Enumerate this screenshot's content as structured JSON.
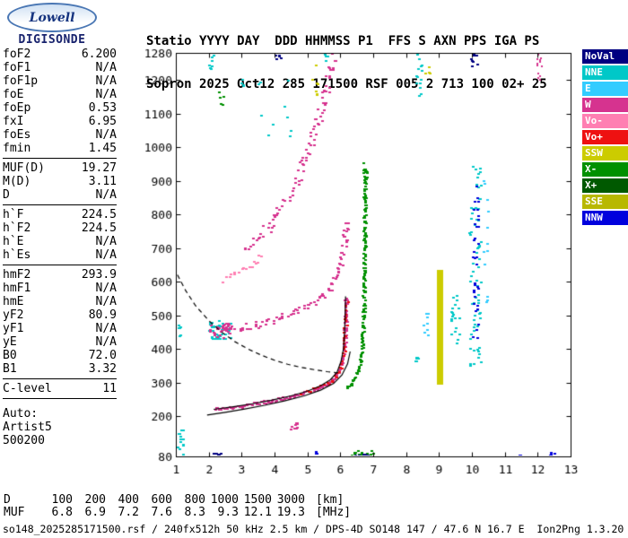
{
  "logo": {
    "name": "Lowell",
    "product": "DIGISONDE"
  },
  "header": {
    "labels": "Statio YYYY DAY  DDD HHMMSS P1  FFS S AXN PPS IGA PS",
    "values": "Sopron 2025 Oct12 285 171500 RSF 005 2 713 100 02+ 25"
  },
  "params": {
    "groups": [
      {
        "rows": [
          [
            "foF2",
            "6.200"
          ],
          [
            "foF1",
            "N/A"
          ],
          [
            "foF1p",
            "N/A"
          ],
          [
            "foE",
            "N/A"
          ],
          [
            "foEp",
            "0.53"
          ],
          [
            "fxI",
            "6.95"
          ],
          [
            "foEs",
            "N/A"
          ],
          [
            "fmin",
            "1.45"
          ]
        ]
      },
      {
        "rows": [
          [
            "MUF(D)",
            "19.27"
          ],
          [
            "M(D)",
            "3.11"
          ],
          [
            "D",
            "N/A"
          ]
        ]
      },
      {
        "rows": [
          [
            "h`F",
            "224.5"
          ],
          [
            "h`F2",
            "224.5"
          ],
          [
            "h`E",
            "N/A"
          ],
          [
            "h`Es",
            "N/A"
          ]
        ]
      },
      {
        "rows": [
          [
            "hmF2",
            "293.9"
          ],
          [
            "hmF1",
            "N/A"
          ],
          [
            "hmE",
            "N/A"
          ],
          [
            "yF2",
            "80.9"
          ],
          [
            "yF1",
            "N/A"
          ],
          [
            "yE",
            "N/A"
          ],
          [
            "B0",
            "72.0"
          ],
          [
            "B1",
            "3.32"
          ]
        ]
      },
      {
        "rows": [
          [
            "C-level",
            "11"
          ]
        ]
      }
    ],
    "footer": [
      "Auto:",
      "Artist5",
      "500200"
    ]
  },
  "legend": [
    {
      "label": "NoVal",
      "color": "#000080"
    },
    {
      "label": "NNE",
      "color": "#00C8C8"
    },
    {
      "label": "E",
      "color": "#33CCFF"
    },
    {
      "label": "W",
      "color": "#D6338F"
    },
    {
      "label": "Vo-",
      "color": "#FF7FB2"
    },
    {
      "label": "Vo+",
      "color": "#EE1111"
    },
    {
      "label": "SSW",
      "color": "#CCCC00"
    },
    {
      "label": "X-",
      "color": "#009000"
    },
    {
      "label": "X+",
      "color": "#005900"
    },
    {
      "label": "SSE",
      "color": "#B8B800"
    },
    {
      "label": "NNW",
      "color": "#0000DD"
    }
  ],
  "ruler": {
    "rows": [
      {
        "label": "D",
        "values": [
          "100",
          "200",
          "400",
          "600",
          "800",
          "1000",
          "1500",
          "3000"
        ],
        "unit": "[km]"
      },
      {
        "label": "MUF",
        "values": [
          "6.8",
          "6.9",
          "7.2",
          "7.6",
          "8.3",
          "9.3",
          "12.1",
          "19.3"
        ],
        "unit": "[MHz]"
      }
    ]
  },
  "status_line": "so148_2025285171500.rsf / 240fx512h 50 kHz 2.5 km / DPS-4D SO148 147 / 47.6 N 16.7 E  Ion2Png 1.3.20",
  "chart_data": {
    "type": "scatter",
    "title": "Ionogram",
    "xlabel": "[MHz]",
    "ylabel": "[km]",
    "xlim": [
      1,
      13
    ],
    "ylim": [
      80,
      1280
    ],
    "x_ticks": [
      1,
      2,
      3,
      4,
      5,
      6,
      7,
      8,
      9,
      10,
      11,
      12,
      13
    ],
    "y_ticks": [
      80,
      200,
      300,
      400,
      500,
      600,
      700,
      800,
      900,
      1000,
      1100,
      1200,
      1280
    ],
    "seed": 20251012,
    "traces": [
      {
        "name": "F-trace O-mode 1st hop",
        "c": "W",
        "step": 1.6,
        "jx": 1.5,
        "jy": 2,
        "w": 3,
        "points": [
          [
            2.15,
            222
          ],
          [
            2.6,
            228
          ],
          [
            3.0,
            233
          ],
          [
            3.4,
            239
          ],
          [
            3.8,
            246
          ],
          [
            4.2,
            254
          ],
          [
            4.6,
            263
          ],
          [
            5.0,
            274
          ],
          [
            5.3,
            285
          ],
          [
            5.6,
            299
          ],
          [
            5.8,
            315
          ],
          [
            5.95,
            338
          ],
          [
            6.05,
            370
          ],
          [
            6.1,
            410
          ],
          [
            6.12,
            455
          ],
          [
            6.14,
            505
          ],
          [
            6.15,
            550
          ]
        ]
      },
      {
        "name": "F-trace red doppler overlay",
        "c": "Vo+",
        "step": 4,
        "jx": 2,
        "jy": 2,
        "w": 3,
        "points": [
          [
            4.8,
            268
          ],
          [
            5.2,
            281
          ],
          [
            5.6,
            298
          ],
          [
            5.85,
            318
          ],
          [
            6.0,
            348
          ],
          [
            6.08,
            390
          ],
          [
            6.12,
            440
          ],
          [
            6.14,
            495
          ],
          [
            6.16,
            540
          ]
        ]
      },
      {
        "name": "F-trace X-mode",
        "c": "X-",
        "step": 1.6,
        "jx": 1.5,
        "jy": 2,
        "w": 3,
        "points": [
          [
            6.18,
            288
          ],
          [
            6.3,
            298
          ],
          [
            6.42,
            315
          ],
          [
            6.52,
            338
          ],
          [
            6.6,
            372
          ],
          [
            6.65,
            425
          ],
          [
            6.68,
            495
          ],
          [
            6.7,
            575
          ],
          [
            6.7,
            655
          ],
          [
            6.72,
            735
          ],
          [
            6.72,
            815
          ],
          [
            6.73,
            900
          ],
          [
            6.74,
            935
          ]
        ]
      },
      {
        "name": "F-trace O-mode 2nd hop",
        "c": "W",
        "step": 2.5,
        "jx": 3,
        "jy": 4,
        "w": 3,
        "points": [
          [
            2.2,
            452
          ],
          [
            2.6,
            458
          ],
          [
            3.0,
            465
          ],
          [
            3.4,
            473
          ],
          [
            3.8,
            483
          ],
          [
            4.2,
            495
          ],
          [
            4.6,
            510
          ],
          [
            5.0,
            529
          ],
          [
            5.3,
            548
          ],
          [
            5.6,
            575
          ],
          [
            5.85,
            615
          ],
          [
            6.0,
            660
          ],
          [
            6.1,
            720
          ],
          [
            6.15,
            780
          ]
        ]
      },
      {
        "name": "F-trace O-mode 3rd hop",
        "c": "W",
        "step": 3,
        "jx": 4,
        "jy": 5,
        "w": 3,
        "points": [
          [
            3.1,
            690
          ],
          [
            3.4,
            720
          ],
          [
            3.7,
            755
          ],
          [
            4.0,
            795
          ],
          [
            4.3,
            840
          ],
          [
            4.6,
            895
          ],
          [
            4.9,
            960
          ],
          [
            5.1,
            1020
          ],
          [
            5.3,
            1085
          ],
          [
            5.5,
            1160
          ],
          [
            5.65,
            1235
          ],
          [
            5.75,
            1280
          ]
        ]
      },
      {
        "name": "pink spread band",
        "c": "Vo-",
        "step": 4,
        "jx": 3,
        "jy": 4,
        "w": 3,
        "points": [
          [
            2.35,
            608
          ],
          [
            2.7,
            622
          ],
          [
            3.05,
            640
          ],
          [
            3.35,
            660
          ],
          [
            3.6,
            680
          ]
        ]
      }
    ],
    "curves": [
      {
        "name": "muf-transmission-curve",
        "style": "dashed",
        "points": [
          [
            1.05,
            620
          ],
          [
            1.3,
            573
          ],
          [
            1.6,
            528
          ],
          [
            2.0,
            484
          ],
          [
            2.4,
            449
          ],
          [
            2.8,
            421
          ],
          [
            3.2,
            399
          ],
          [
            3.6,
            381
          ],
          [
            4.0,
            366
          ],
          [
            4.4,
            354
          ],
          [
            4.8,
            345
          ],
          [
            5.2,
            338
          ],
          [
            5.6,
            332
          ],
          [
            6.0,
            328
          ]
        ]
      },
      {
        "name": "autoscaled-O-trace-fit",
        "style": "solid",
        "points": [
          [
            2.15,
            220
          ],
          [
            2.7,
            227
          ],
          [
            3.3,
            236
          ],
          [
            3.9,
            247
          ],
          [
            4.5,
            260
          ],
          [
            5.0,
            274
          ],
          [
            5.4,
            290
          ],
          [
            5.7,
            308
          ],
          [
            5.9,
            330
          ],
          [
            6.02,
            362
          ],
          [
            6.1,
            402
          ],
          [
            6.13,
            452
          ],
          [
            6.15,
            508
          ],
          [
            6.16,
            556
          ]
        ]
      },
      {
        "name": "autoscaled-lower-trace-fit",
        "style": "solid",
        "points": [
          [
            1.95,
            203
          ],
          [
            2.5,
            211
          ],
          [
            3.1,
            221
          ],
          [
            3.7,
            232
          ],
          [
            4.3,
            245
          ],
          [
            4.9,
            260
          ],
          [
            5.4,
            277
          ],
          [
            5.8,
            297
          ],
          [
            6.05,
            322
          ],
          [
            6.22,
            355
          ],
          [
            6.3,
            392
          ]
        ]
      }
    ],
    "bars": [
      {
        "c": "SSW",
        "f": [
          8.93,
          9.12
        ],
        "h": [
          295,
          635
        ]
      }
    ],
    "noise": [
      {
        "c": "NNE",
        "f": [
          1.0,
          1.2
        ],
        "h": [
          80,
          160
        ],
        "n": 14
      },
      {
        "c": "NNE",
        "f": [
          1.0,
          1.12
        ],
        "h": [
          440,
          480
        ],
        "n": 6
      },
      {
        "c": "NNE",
        "f": [
          1.98,
          2.65
        ],
        "h": [
          428,
          487
        ],
        "n": 46
      },
      {
        "c": "W",
        "f": [
          2.0,
          2.6
        ],
        "h": [
          435,
          478
        ],
        "n": 26
      },
      {
        "c": "NNE",
        "f": [
          1.95,
          2.12
        ],
        "h": [
          1232,
          1276
        ],
        "n": 8
      },
      {
        "c": "X-",
        "f": [
          2.25,
          2.42
        ],
        "h": [
          1128,
          1172
        ],
        "n": 5
      },
      {
        "c": "NNE",
        "f": [
          2.9,
          3.12
        ],
        "h": [
          1182,
          1208
        ],
        "n": 4
      },
      {
        "c": "NNE",
        "f": [
          3.3,
          4.6
        ],
        "h": [
          1000,
          1240
        ],
        "n": 10
      },
      {
        "c": "SSW",
        "f": [
          5.08,
          5.3
        ],
        "h": [
          1145,
          1245
        ],
        "n": 7
      },
      {
        "c": "NoVal",
        "f": [
          3.98,
          4.22
        ],
        "h": [
          1238,
          1276
        ],
        "n": 5
      },
      {
        "c": "NNE",
        "f": [
          5.5,
          5.66
        ],
        "h": [
          1252,
          1280
        ],
        "n": 4
      },
      {
        "c": "NNE",
        "f": [
          8.25,
          8.45
        ],
        "h": [
          1150,
          1280
        ],
        "n": 14
      },
      {
        "c": "SSW",
        "f": [
          8.55,
          8.72
        ],
        "h": [
          1212,
          1248
        ],
        "n": 4
      },
      {
        "c": "NNE",
        "f": [
          8.18,
          8.42
        ],
        "h": [
          358,
          388
        ],
        "n": 6
      },
      {
        "c": "E",
        "f": [
          8.5,
          8.66
        ],
        "h": [
          438,
          522
        ],
        "n": 8
      },
      {
        "c": "NNE",
        "f": [
          9.3,
          9.62
        ],
        "h": [
          418,
          562
        ],
        "n": 20
      },
      {
        "c": "NNE",
        "f": [
          9.9,
          10.26
        ],
        "h": [
          350,
          950
        ],
        "n": 70
      },
      {
        "c": "NNW",
        "f": [
          10.0,
          10.18
        ],
        "h": [
          420,
          900
        ],
        "n": 35
      },
      {
        "c": "E",
        "f": [
          10.3,
          10.46
        ],
        "h": [
          500,
          905
        ],
        "n": 12
      },
      {
        "c": "NoVal",
        "f": [
          9.95,
          10.16
        ],
        "h": [
          1235,
          1280
        ],
        "n": 8
      },
      {
        "c": "W",
        "f": [
          11.95,
          12.1
        ],
        "h": [
          1188,
          1280
        ],
        "n": 12,
        "w": 2
      },
      {
        "c": "NNW",
        "f": [
          11.4,
          11.56
        ],
        "h": [
          80,
          96
        ],
        "n": 4
      },
      {
        "c": "NNW",
        "f": [
          12.35,
          12.52
        ],
        "h": [
          80,
          96
        ],
        "n": 4
      },
      {
        "c": "NNW",
        "f": [
          5.14,
          5.26
        ],
        "h": [
          84,
          100
        ],
        "n": 3
      },
      {
        "c": "X-",
        "f": [
          6.3,
          7.0
        ],
        "h": [
          80,
          106
        ],
        "n": 16
      },
      {
        "c": "NoVal",
        "f": [
          6.4,
          6.95
        ],
        "h": [
          80,
          94
        ],
        "n": 8
      },
      {
        "c": "NoVal",
        "f": [
          2.05,
          2.38
        ],
        "h": [
          80,
          92
        ],
        "n": 6
      },
      {
        "c": "W",
        "f": [
          4.45,
          4.75
        ],
        "h": [
          162,
          182
        ],
        "n": 10
      },
      {
        "c": "X-",
        "f": [
          6.6,
          6.8
        ],
        "h": [
          900,
          962
        ],
        "n": 6
      }
    ]
  }
}
